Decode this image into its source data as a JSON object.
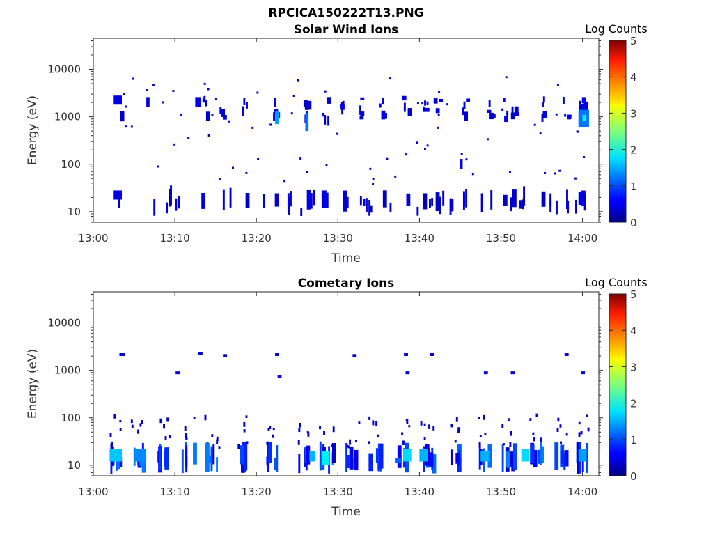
{
  "figure": {
    "main_title": "RPCICA150222T13.PNG"
  },
  "colorbar": {
    "title": "Log Counts",
    "ticks": [
      "0",
      "1",
      "2",
      "3",
      "4",
      "5"
    ],
    "range": [
      0,
      5
    ],
    "colormap": "jet"
  },
  "chart_data": [
    {
      "type": "heatmap",
      "title": "Solar Wind Ions",
      "xlabel": "Time",
      "ylabel": "Energy (eV)",
      "x_ticks": [
        "13:00",
        "13:10",
        "13:20",
        "13:30",
        "13:40",
        "13:50",
        "14:00"
      ],
      "x_range": [
        "13:00",
        "14:02"
      ],
      "y_ticks": [
        "10",
        "100",
        "1000",
        "10000"
      ],
      "y_scale": "log",
      "y_range": [
        6,
        45000
      ],
      "grid": false,
      "cells": [
        {
          "t": "13:02.5",
          "t_end": "13:03.5",
          "e_lo": 1800,
          "e_hi": 2800,
          "v": 0.5
        },
        {
          "t": "13:02.5",
          "t_end": "13:03.5",
          "e_lo": 18,
          "e_hi": 28,
          "v": 0.5
        },
        {
          "t": "13:03.0",
          "t_end": "13:03.3",
          "e_lo": 12,
          "e_hi": 18,
          "v": 0.4
        },
        {
          "t": "13:03.3",
          "t_end": "13:03.8",
          "e_lo": 800,
          "e_hi": 1300,
          "v": 0.4
        },
        {
          "t": "13:06.5",
          "t_end": "13:06.9",
          "e_lo": 1600,
          "e_hi": 2600,
          "v": 0.4
        },
        {
          "t": "13:12.5",
          "t_end": "13:13.2",
          "e_lo": 1600,
          "e_hi": 2600,
          "v": 0.5
        },
        {
          "t": "13:22.3",
          "t_end": "13:22.8",
          "e_lo": 700,
          "e_hi": 1300,
          "v": 1.4
        },
        {
          "t": "13:26.0",
          "t_end": "13:26.4",
          "e_lo": 500,
          "e_hi": 1200,
          "v": 1.2
        },
        {
          "t": "13:28.0",
          "t_end": "13:28.6",
          "e_lo": 12,
          "e_hi": 28,
          "v": 0.5
        },
        {
          "t": "13:45.0",
          "t_end": "13:45.3",
          "e_lo": 80,
          "e_hi": 130,
          "v": 0.6
        },
        {
          "t": "13:59.5",
          "t_end": "14:00.8",
          "e_lo": 600,
          "e_hi": 1400,
          "v": 1.2
        },
        {
          "t": "14:00.0",
          "t_end": "14:00.4",
          "e_lo": 800,
          "e_hi": 1100,
          "v": 1.8
        },
        {
          "t": "13:59.5",
          "t_end": "14:00.0",
          "e_lo": 14,
          "e_hi": 26,
          "v": 0.5
        }
      ]
    },
    {
      "type": "heatmap",
      "title": "Cometary Ions",
      "xlabel": "Time",
      "ylabel": "Energy (eV)",
      "x_ticks": [
        "13:00",
        "13:10",
        "13:20",
        "13:30",
        "13:40",
        "13:50",
        "14:00"
      ],
      "x_range": [
        "13:00",
        "14:02"
      ],
      "y_ticks": [
        "10",
        "100",
        "1000",
        "10000"
      ],
      "y_scale": "log",
      "y_range": [
        6,
        45000
      ],
      "grid": false,
      "cells": [
        {
          "t": "13:02.0",
          "t_end": "13:03.5",
          "e_lo": 12,
          "e_hi": 22,
          "v": 1.6
        },
        {
          "t": "13:05.0",
          "t_end": "13:06.5",
          "e_lo": 12,
          "e_hi": 22,
          "v": 1.3
        },
        {
          "t": "13:26.5",
          "t_end": "13:27.2",
          "e_lo": 12,
          "e_hi": 20,
          "v": 1.5
        },
        {
          "t": "13:28.0",
          "t_end": "13:29.0",
          "e_lo": 10,
          "e_hi": 20,
          "v": 1.8
        },
        {
          "t": "13:38.0",
          "t_end": "13:39.0",
          "e_lo": 12,
          "e_hi": 22,
          "v": 1.7
        },
        {
          "t": "13:40.0",
          "t_end": "13:41.0",
          "e_lo": 12,
          "e_hi": 22,
          "v": 1.5
        },
        {
          "t": "13:47.5",
          "t_end": "13:48.5",
          "e_lo": 12,
          "e_hi": 20,
          "v": 1.5
        },
        {
          "t": "13:52.5",
          "t_end": "13:53.5",
          "e_lo": 12,
          "e_hi": 22,
          "v": 1.7
        },
        {
          "t": "13:59.5",
          "t_end": "14:00.5",
          "e_lo": 12,
          "e_hi": 22,
          "v": 1.4
        }
      ]
    }
  ]
}
